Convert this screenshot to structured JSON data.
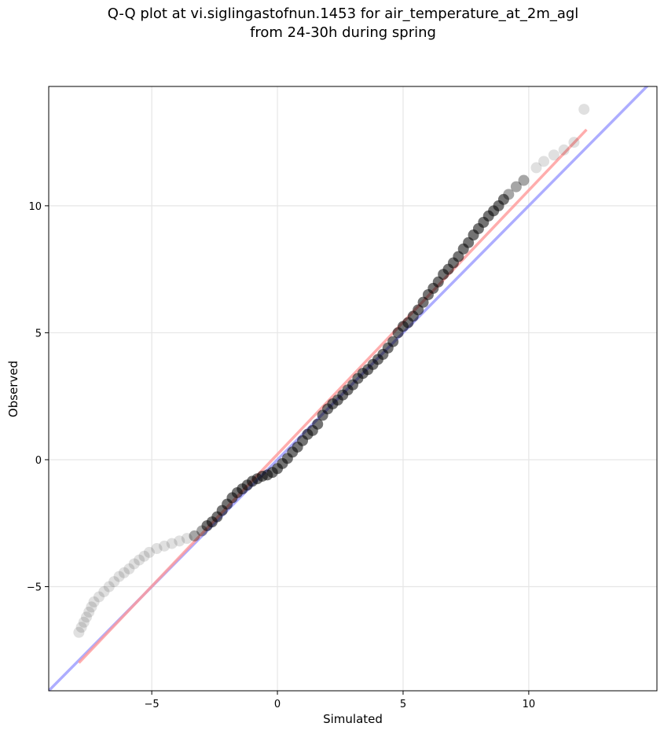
{
  "chart_data": {
    "type": "scatter",
    "title_line1": "Q-Q plot at vi.siglingastofnun.1453 for air_temperature_at_2m_agl",
    "title_line2": "from 24-30h during spring",
    "xlabel": "Simulated",
    "ylabel": "Observed",
    "xlim": [
      -9.1,
      15.1
    ],
    "ylim": [
      -9.1,
      14.7
    ],
    "xticks": [
      -5,
      0,
      5,
      10
    ],
    "yticks": [
      -5,
      0,
      5,
      10
    ],
    "xtick_labels": [
      "−5",
      "0",
      "5",
      "10"
    ],
    "ytick_labels": [
      "−5",
      "0",
      "5",
      "10"
    ],
    "grid": true,
    "reference_lines": [
      {
        "kind": "identity",
        "color": "#9999ff",
        "points": [
          [
            -9.1,
            -9.1
          ],
          [
            15.1,
            15.1
          ]
        ]
      },
      {
        "kind": "fit",
        "color": "#ff9999",
        "points": [
          [
            -7.9,
            -8.0
          ],
          [
            12.3,
            13.0
          ]
        ]
      }
    ],
    "points": [
      [
        -7.9,
        -6.8
      ],
      [
        -7.8,
        -6.6
      ],
      [
        -7.7,
        -6.4
      ],
      [
        -7.6,
        -6.2
      ],
      [
        -7.5,
        -6.0
      ],
      [
        -7.4,
        -5.8
      ],
      [
        -7.3,
        -5.6
      ],
      [
        -7.1,
        -5.4
      ],
      [
        -6.9,
        -5.2
      ],
      [
        -6.7,
        -5.0
      ],
      [
        -6.5,
        -4.8
      ],
      [
        -6.3,
        -4.6
      ],
      [
        -6.1,
        -4.45
      ],
      [
        -5.9,
        -4.3
      ],
      [
        -5.7,
        -4.1
      ],
      [
        -5.5,
        -3.95
      ],
      [
        -5.3,
        -3.8
      ],
      [
        -5.1,
        -3.65
      ],
      [
        -4.8,
        -3.5
      ],
      [
        -4.5,
        -3.4
      ],
      [
        -4.2,
        -3.3
      ],
      [
        -3.9,
        -3.2
      ],
      [
        -3.6,
        -3.1
      ],
      [
        -3.3,
        -3.0
      ],
      [
        -3.0,
        -2.8
      ],
      [
        -2.8,
        -2.6
      ],
      [
        -2.6,
        -2.45
      ],
      [
        -2.4,
        -2.25
      ],
      [
        -2.2,
        -2.0
      ],
      [
        -2.0,
        -1.75
      ],
      [
        -1.8,
        -1.5
      ],
      [
        -1.6,
        -1.3
      ],
      [
        -1.4,
        -1.15
      ],
      [
        -1.2,
        -1.0
      ],
      [
        -1.0,
        -0.85
      ],
      [
        -0.8,
        -0.75
      ],
      [
        -0.6,
        -0.65
      ],
      [
        -0.4,
        -0.6
      ],
      [
        -0.2,
        -0.5
      ],
      [
        0.0,
        -0.35
      ],
      [
        0.2,
        -0.15
      ],
      [
        0.4,
        0.05
      ],
      [
        0.6,
        0.3
      ],
      [
        0.8,
        0.5
      ],
      [
        1.0,
        0.75
      ],
      [
        1.2,
        1.0
      ],
      [
        1.4,
        1.15
      ],
      [
        1.6,
        1.4
      ],
      [
        1.8,
        1.75
      ],
      [
        2.0,
        2.0
      ],
      [
        2.2,
        2.2
      ],
      [
        2.4,
        2.35
      ],
      [
        2.6,
        2.55
      ],
      [
        2.8,
        2.75
      ],
      [
        3.0,
        2.95
      ],
      [
        3.2,
        3.2
      ],
      [
        3.4,
        3.4
      ],
      [
        3.6,
        3.55
      ],
      [
        3.8,
        3.75
      ],
      [
        4.0,
        3.95
      ],
      [
        4.2,
        4.15
      ],
      [
        4.4,
        4.4
      ],
      [
        4.6,
        4.65
      ],
      [
        4.8,
        5.0
      ],
      [
        5.0,
        5.25
      ],
      [
        5.2,
        5.4
      ],
      [
        5.4,
        5.65
      ],
      [
        5.6,
        5.9
      ],
      [
        5.8,
        6.2
      ],
      [
        6.0,
        6.5
      ],
      [
        6.2,
        6.75
      ],
      [
        6.4,
        7.0
      ],
      [
        6.6,
        7.3
      ],
      [
        6.8,
        7.5
      ],
      [
        7.0,
        7.75
      ],
      [
        7.2,
        8.0
      ],
      [
        7.4,
        8.3
      ],
      [
        7.6,
        8.55
      ],
      [
        7.8,
        8.85
      ],
      [
        8.0,
        9.1
      ],
      [
        8.2,
        9.35
      ],
      [
        8.4,
        9.6
      ],
      [
        8.6,
        9.8
      ],
      [
        8.8,
        10.0
      ],
      [
        9.0,
        10.25
      ],
      [
        9.2,
        10.45
      ],
      [
        9.5,
        10.75
      ],
      [
        9.8,
        11.0
      ],
      [
        10.3,
        11.5
      ],
      [
        10.6,
        11.75
      ],
      [
        11.0,
        12.0
      ],
      [
        11.4,
        12.2
      ],
      [
        11.8,
        12.5
      ],
      [
        12.2,
        13.8
      ]
    ]
  }
}
